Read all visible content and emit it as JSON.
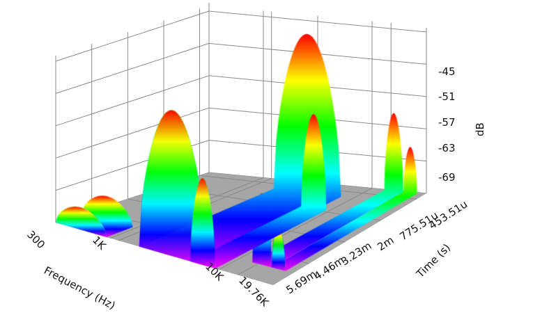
{
  "chart_data": {
    "type": "surface3d",
    "colormap": [
      "#ff00ff",
      "#0000ff",
      "#00ffff",
      "#00ff00",
      "#ffff00",
      "#ff0000"
    ],
    "floor_color": "#a6a6a6",
    "grid": true,
    "x_axis": {
      "label": "Frequency (Hz)",
      "scale": "log",
      "range": [
        300,
        19760
      ],
      "ticks": [
        {
          "value": 300,
          "label": "300"
        },
        {
          "value": 1000,
          "label": "1K"
        },
        {
          "value": 10000,
          "label": "10K"
        },
        {
          "value": 19760,
          "label": "19.76K"
        }
      ]
    },
    "y_axis": {
      "label": "Time (s)",
      "range": [
        0.00045351,
        0.00569
      ],
      "ticks": [
        {
          "value": 0.00045351,
          "label": "453.51u"
        },
        {
          "value": 0.00077551,
          "label": "775.51u"
        },
        {
          "value": 0.002,
          "label": "2m"
        },
        {
          "value": 0.00323,
          "label": "3.23m"
        },
        {
          "value": 0.00446,
          "label": "4.46m"
        },
        {
          "value": 0.00569,
          "label": "5.69m"
        }
      ]
    },
    "z_axis": {
      "label": "dB",
      "range": [
        -75,
        -45
      ],
      "ticks": [
        {
          "value": -45,
          "label": "-45"
        },
        {
          "value": -51,
          "label": "-51"
        },
        {
          "value": -57,
          "label": "-57"
        },
        {
          "value": -63,
          "label": "-63"
        },
        {
          "value": -69,
          "label": "-69"
        }
      ]
    },
    "ridges": [
      {
        "peak_db": -45.5,
        "freq_from": 1500,
        "freq_to": 5500,
        "time_from": 0.0011,
        "time_to": 0.0057
      },
      {
        "peak_db": -57.5,
        "freq_from": 4000,
        "freq_to": 6500,
        "time_from": 0.0019,
        "time_to": 0.0057
      },
      {
        "peak_db": -60.5,
        "freq_from": 9000,
        "freq_to": 13000,
        "time_from": 0.0005,
        "time_to": 0.005
      },
      {
        "peak_db": -66.5,
        "freq_from": 13000,
        "freq_to": 17000,
        "time_from": 0.0005,
        "time_to": 0.005
      },
      {
        "peak_db": -70.5,
        "freq_from": 300,
        "freq_to": 800,
        "time_from": 0.0048,
        "time_to": 0.0057
      }
    ]
  }
}
